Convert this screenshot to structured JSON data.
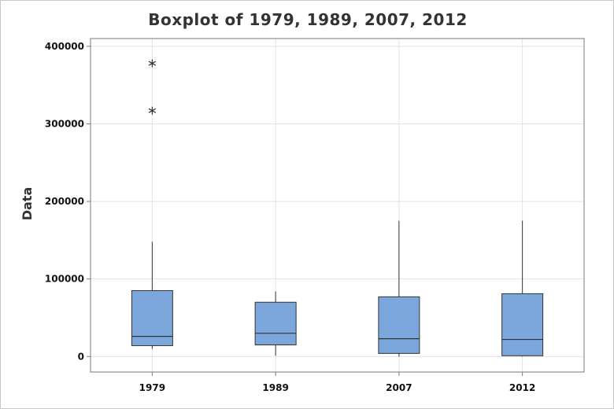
{
  "chart_data": {
    "type": "boxplot",
    "title": "Boxplot of 1979, 1989, 2007, 2012",
    "xlabel": "",
    "ylabel": "Data",
    "ylim": [
      -20000,
      410000
    ],
    "yticks": [
      0,
      100000,
      200000,
      300000,
      400000
    ],
    "ytick_labels": [
      "0",
      "100000",
      "200000",
      "300000",
      "400000"
    ],
    "grid": true,
    "box_color": "#7ba7dc",
    "categories": [
      "1979",
      "1989",
      "2007",
      "2012"
    ],
    "boxes": [
      {
        "category": "1979",
        "whisker_low": 10000,
        "q1": 14000,
        "median": 26000,
        "q3": 85000,
        "whisker_high": 148000,
        "outliers": [
          317000,
          378000
        ]
      },
      {
        "category": "1989",
        "whisker_low": 1000,
        "q1": 15000,
        "median": 30000,
        "q3": 70000,
        "whisker_high": 84000,
        "outliers": []
      },
      {
        "category": "2007",
        "whisker_low": 0,
        "q1": 4000,
        "median": 23000,
        "q3": 77000,
        "whisker_high": 175000,
        "outliers": []
      },
      {
        "category": "2012",
        "whisker_low": 0,
        "q1": 1000,
        "median": 22000,
        "q3": 81000,
        "whisker_high": 175000,
        "outliers": []
      }
    ]
  }
}
